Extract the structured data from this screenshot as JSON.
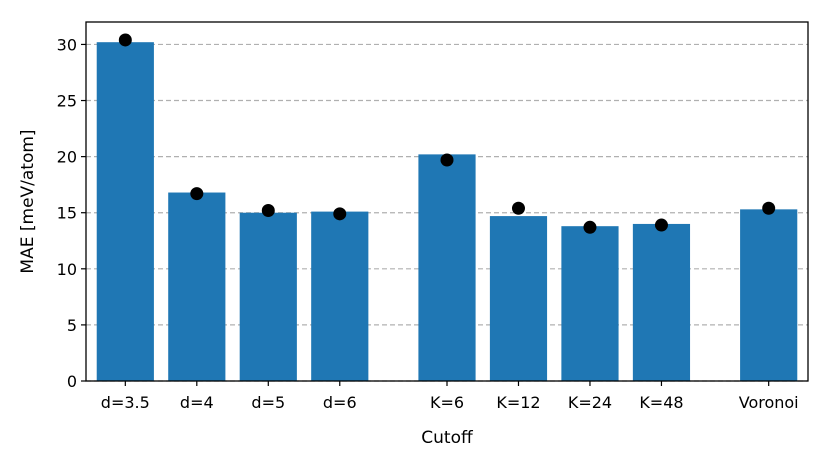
{
  "chart_data": {
    "type": "bar",
    "categories": [
      "d=3.5",
      "d=4",
      "d=5",
      "d=6",
      "K=6",
      "K=12",
      "K=24",
      "K=48",
      "Voronoi"
    ],
    "series": [
      {
        "type": "bar",
        "values": [
          30.2,
          16.8,
          15.0,
          15.1,
          20.2,
          14.7,
          13.8,
          14.0,
          15.3
        ]
      },
      {
        "type": "scatter",
        "values": [
          30.4,
          16.7,
          15.2,
          14.9,
          19.7,
          15.4,
          13.7,
          13.9,
          15.4
        ]
      }
    ],
    "title": "",
    "xlabel": "Cutoff",
    "ylabel": "MAE [meV/atom]",
    "ylim": [
      0,
      32
    ],
    "yticks": [
      0,
      5,
      10,
      15,
      20,
      25,
      30
    ],
    "grid": "y-dashed",
    "colors": {
      "bar": "#1f77b4",
      "marker": "#000000",
      "grid": "#b0b0b0"
    }
  }
}
